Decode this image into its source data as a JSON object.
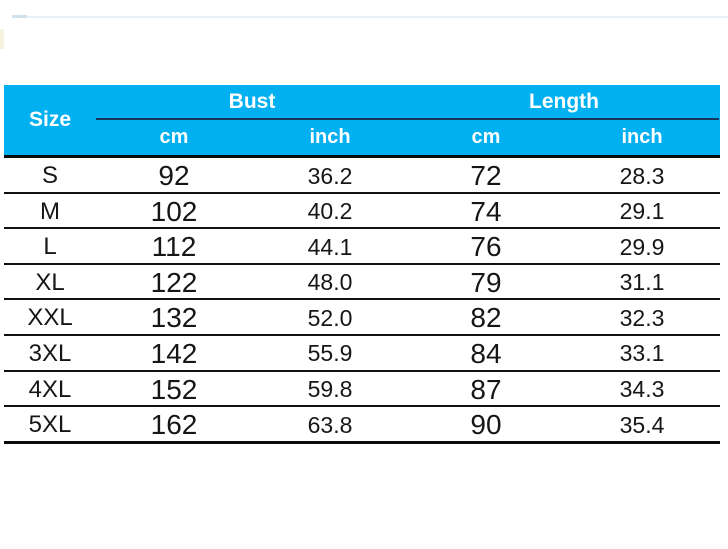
{
  "colors": {
    "header_bg": "#00b0f0",
    "header_text": "#ffffff",
    "header_divider": "#16365c",
    "grid_line": "#111111",
    "cell_text": "#161616"
  },
  "chart_data": {
    "type": "table",
    "header": {
      "size_label": "Size",
      "groups": [
        {
          "label": "Bust",
          "subcolumns": [
            "cm",
            "inch"
          ]
        },
        {
          "label": "Length",
          "subcolumns": [
            "cm",
            "inch"
          ]
        }
      ]
    },
    "rows": [
      {
        "size": "S",
        "bust_cm": "92",
        "bust_inch": "36.2",
        "length_cm": "72",
        "length_inch": "28.3"
      },
      {
        "size": "M",
        "bust_cm": "102",
        "bust_inch": "40.2",
        "length_cm": "74",
        "length_inch": "29.1"
      },
      {
        "size": "L",
        "bust_cm": "112",
        "bust_inch": "44.1",
        "length_cm": "76",
        "length_inch": "29.9"
      },
      {
        "size": "XL",
        "bust_cm": "122",
        "bust_inch": "48.0",
        "length_cm": "79",
        "length_inch": "31.1"
      },
      {
        "size": "XXL",
        "bust_cm": "132",
        "bust_inch": "52.0",
        "length_cm": "82",
        "length_inch": "32.3"
      },
      {
        "size": "3XL",
        "bust_cm": "142",
        "bust_inch": "55.9",
        "length_cm": "84",
        "length_inch": "33.1"
      },
      {
        "size": "4XL",
        "bust_cm": "152",
        "bust_inch": "59.8",
        "length_cm": "87",
        "length_inch": "34.3"
      },
      {
        "size": "5XL",
        "bust_cm": "162",
        "bust_inch": "63.8",
        "length_cm": "90",
        "length_inch": "35.4"
      }
    ]
  }
}
